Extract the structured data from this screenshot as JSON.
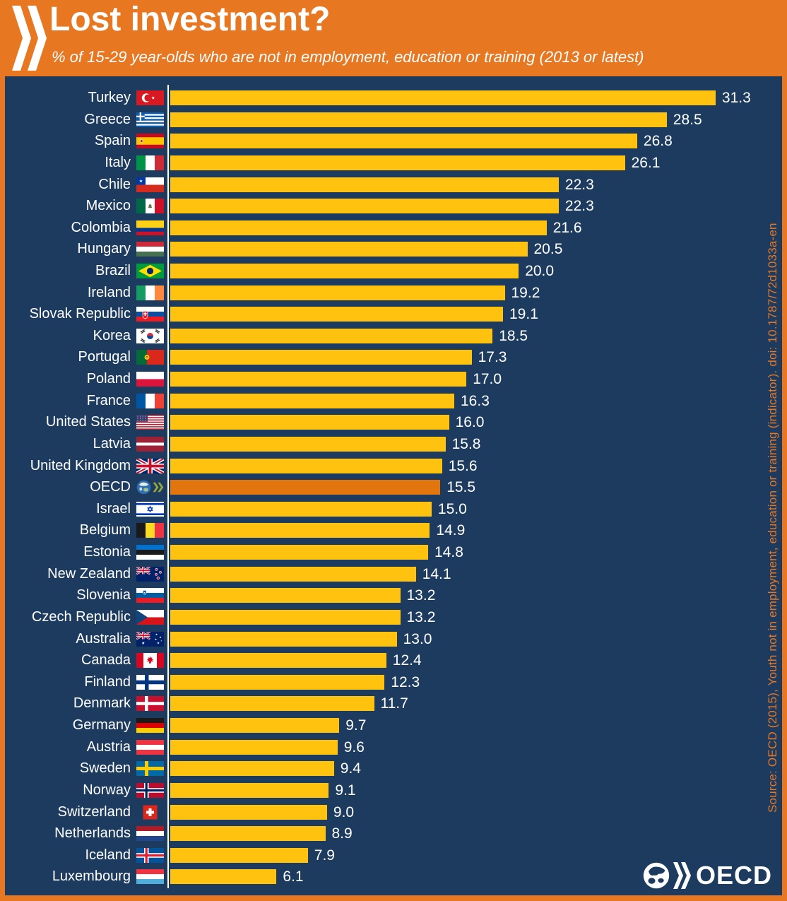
{
  "header": {
    "title": "Lost investment?",
    "subtitle": "% of 15-29 year-olds who are not in employment, education or training (2013 or latest)"
  },
  "icons": {
    "header_logo": "oecd-double-chevron-icon",
    "footer_logo": "oecd-globe-logo",
    "row_flags": "country-flag-icons"
  },
  "chart_data": {
    "type": "bar",
    "orientation": "horizontal",
    "unit": "%",
    "title": "Lost investment?",
    "xlabel": "",
    "ylabel": "",
    "xlim": [
      0,
      35
    ],
    "grid": false,
    "legend": "none",
    "highlight_category": "OECD",
    "highlight_index": 18,
    "categories": [
      "Turkey",
      "Greece",
      "Spain",
      "Italy",
      "Chile",
      "Mexico",
      "Colombia",
      "Hungary",
      "Brazil",
      "Ireland",
      "Slovak Republic",
      "Korea",
      "Portugal",
      "Poland",
      "France",
      "United States",
      "Latvia",
      "United Kingdom",
      "OECD",
      "Israel",
      "Belgium",
      "Estonia",
      "New Zealand",
      "Slovenia",
      "Czech Republic",
      "Australia",
      "Canada",
      "Finland",
      "Denmark",
      "Germany",
      "Austria",
      "Sweden",
      "Norway",
      "Switzerland",
      "Netherlands",
      "Iceland",
      "Luxembourg"
    ],
    "values": [
      31.3,
      28.5,
      26.8,
      26.1,
      22.3,
      22.3,
      21.6,
      20.5,
      20.0,
      19.2,
      19.1,
      18.5,
      17.3,
      17.0,
      16.3,
      16.0,
      15.8,
      15.6,
      15.5,
      15.0,
      14.9,
      14.8,
      14.1,
      13.2,
      13.2,
      13.0,
      12.4,
      12.3,
      11.7,
      9.7,
      9.6,
      9.4,
      9.1,
      9.0,
      8.9,
      7.9,
      6.1
    ],
    "value_labels": [
      "31.3",
      "28.5",
      "26.8",
      "26.1",
      "22.3",
      "22.3",
      "21.6",
      "20.5",
      "20.0",
      "19.2",
      "19.1",
      "18.5",
      "17.3",
      "17.0",
      "16.3",
      "16.0",
      "15.8",
      "15.6",
      "15.5",
      "15.0",
      "14.9",
      "14.8",
      "14.1",
      "13.2",
      "13.2",
      "13.0",
      "12.4",
      "12.3",
      "11.7",
      "9.7",
      "9.6",
      "9.4",
      "9.1",
      "9.0",
      "8.9",
      "7.9",
      "6.1"
    ],
    "flags": [
      "turkey",
      "greece",
      "spain",
      "italy",
      "chile",
      "mexico",
      "colombia",
      "hungary",
      "brazil",
      "ireland",
      "slovak-republic",
      "korea",
      "portugal",
      "poland",
      "france",
      "united-states",
      "latvia",
      "united-kingdom",
      "oecd",
      "israel",
      "belgium",
      "estonia",
      "new-zealand",
      "slovenia",
      "czech-republic",
      "australia",
      "canada",
      "finland",
      "denmark",
      "germany",
      "austria",
      "sweden",
      "norway",
      "switzerland",
      "netherlands",
      "iceland",
      "luxembourg"
    ]
  },
  "source_note": "Source: OECD (2015), Youth not in employment, education or training (indicator). doi: 10.1787/72d1033a-en",
  "footer_logo": {
    "text": "OECD"
  },
  "colors": {
    "background": "#1C3B5F",
    "accent_orange": "#E87722",
    "bar_yellow": "#FFC20E",
    "bar_highlight": "#E2750C",
    "text": "#FFFFFF"
  }
}
